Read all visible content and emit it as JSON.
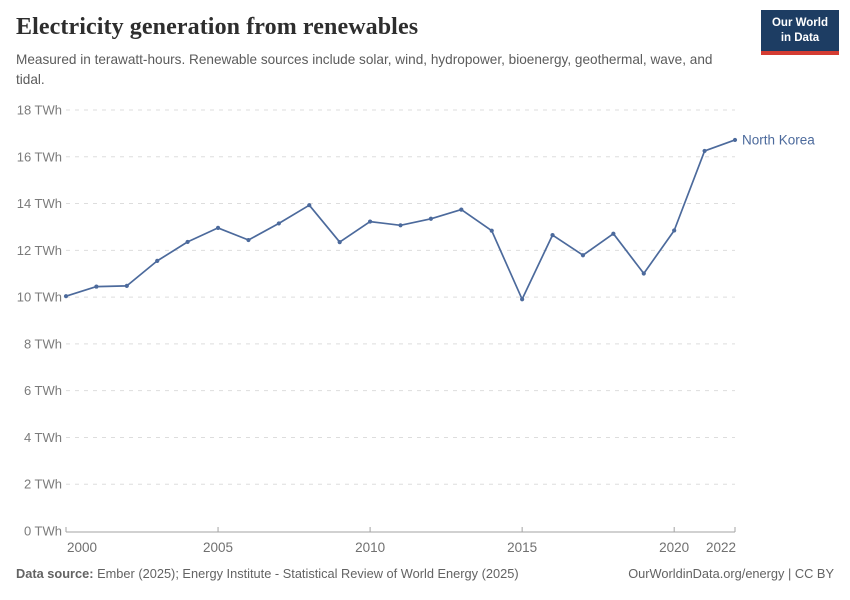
{
  "header": {
    "title": "Electricity generation from renewables",
    "subtitle": "Measured in terawatt-hours. Renewable sources include solar, wind, hydropower, bioenergy, geothermal, wave, and tidal."
  },
  "logo": {
    "line1": "Our World",
    "line2": "in Data",
    "background_color": "#1d3d63",
    "accent_color": "#d43c32"
  },
  "footer": {
    "source_label": "Data source:",
    "source_text": " Ember (2025); Energy Institute - Statistical Review of World Energy (2025)",
    "right_text": "OurWorldinData.org/energy | CC BY"
  },
  "chart_data": {
    "type": "line",
    "title": "Electricity generation from renewables",
    "xlabel": "",
    "ylabel": "",
    "x": [
      2000,
      2001,
      2002,
      2003,
      2004,
      2005,
      2006,
      2007,
      2008,
      2009,
      2010,
      2011,
      2012,
      2013,
      2014,
      2015,
      2016,
      2017,
      2018,
      2019,
      2020,
      2021,
      2022
    ],
    "series": [
      {
        "name": "North Korea",
        "color": "#4c6a9c",
        "values": [
          10.04,
          10.45,
          10.48,
          11.55,
          12.36,
          12.96,
          12.44,
          13.15,
          13.93,
          12.35,
          13.23,
          13.07,
          13.35,
          13.74,
          12.84,
          9.91,
          12.65,
          11.79,
          12.71,
          11.01,
          12.85,
          16.25,
          16.72
        ]
      }
    ],
    "xlim": [
      2000,
      2022
    ],
    "ylim": [
      0,
      18
    ],
    "yticks": [
      0,
      2,
      4,
      6,
      8,
      10,
      12,
      14,
      16,
      18
    ],
    "y_tick_suffix": " TWh",
    "xticks": [
      2000,
      2005,
      2010,
      2015,
      2020,
      2022
    ],
    "grid": "horizontal-dashed",
    "grid_color": "#dddddd",
    "axis_color": "#a3a3a3",
    "legend_position": "end-of-line-label"
  }
}
